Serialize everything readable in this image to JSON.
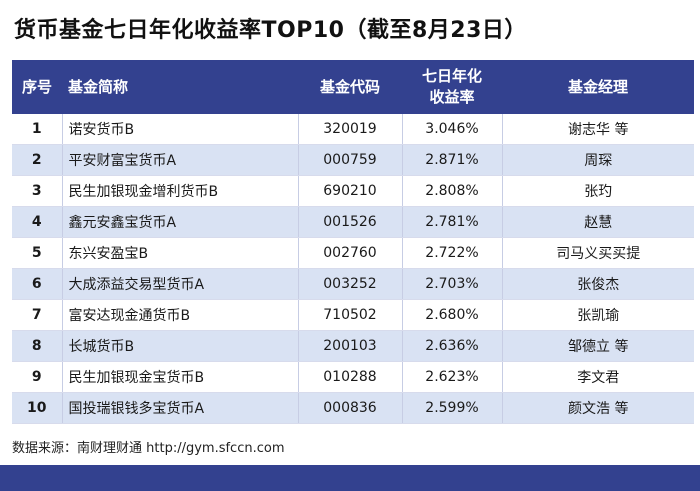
{
  "title": "货币基金七日年化收益率TOP10（截至8月23日）",
  "columns": {
    "rank": "序号",
    "name": "基金简称",
    "code": "基金代码",
    "rate_line1": "七日年化",
    "rate_line2": "收益率",
    "manager": "基金经理"
  },
  "footer": "数据来源：南财理财通 http://gym.sfccn.com",
  "colors": {
    "header_bg": "#33418f",
    "row_alt_bg": "#d9e2f3",
    "row_bg": "#ffffff"
  },
  "chart_data": {
    "type": "table",
    "title": "货币基金七日年化收益率TOP10（截至8月23日）",
    "headers": [
      "序号",
      "基金简称",
      "基金代码",
      "七日年化收益率",
      "基金经理"
    ],
    "rows": [
      {
        "rank": "1",
        "name": "诺安货币B",
        "code": "320019",
        "rate": "3.046%",
        "manager": "谢志华 等"
      },
      {
        "rank": "2",
        "name": "平安财富宝货币A",
        "code": "000759",
        "rate": "2.871%",
        "manager": "周琛"
      },
      {
        "rank": "3",
        "name": "民生加银现金增利货币B",
        "code": "690210",
        "rate": "2.808%",
        "manager": "张玓"
      },
      {
        "rank": "4",
        "name": "鑫元安鑫宝货币A",
        "code": "001526",
        "rate": "2.781%",
        "manager": "赵慧"
      },
      {
        "rank": "5",
        "name": "东兴安盈宝B",
        "code": "002760",
        "rate": "2.722%",
        "manager": "司马义买买提"
      },
      {
        "rank": "6",
        "name": "大成添益交易型货币A",
        "code": "003252",
        "rate": "2.703%",
        "manager": "张俊杰"
      },
      {
        "rank": "7",
        "name": "富安达现金通货币B",
        "code": "710502",
        "rate": "2.680%",
        "manager": "张凯瑜"
      },
      {
        "rank": "8",
        "name": "长城货币B",
        "code": "200103",
        "rate": "2.636%",
        "manager": "邹德立 等"
      },
      {
        "rank": "9",
        "name": "民生加银现金宝货币B",
        "code": "010288",
        "rate": "2.623%",
        "manager": "李文君"
      },
      {
        "rank": "10",
        "name": "国投瑞银钱多宝货币A",
        "code": "000836",
        "rate": "2.599%",
        "manager": "颜文浩 等"
      }
    ]
  }
}
